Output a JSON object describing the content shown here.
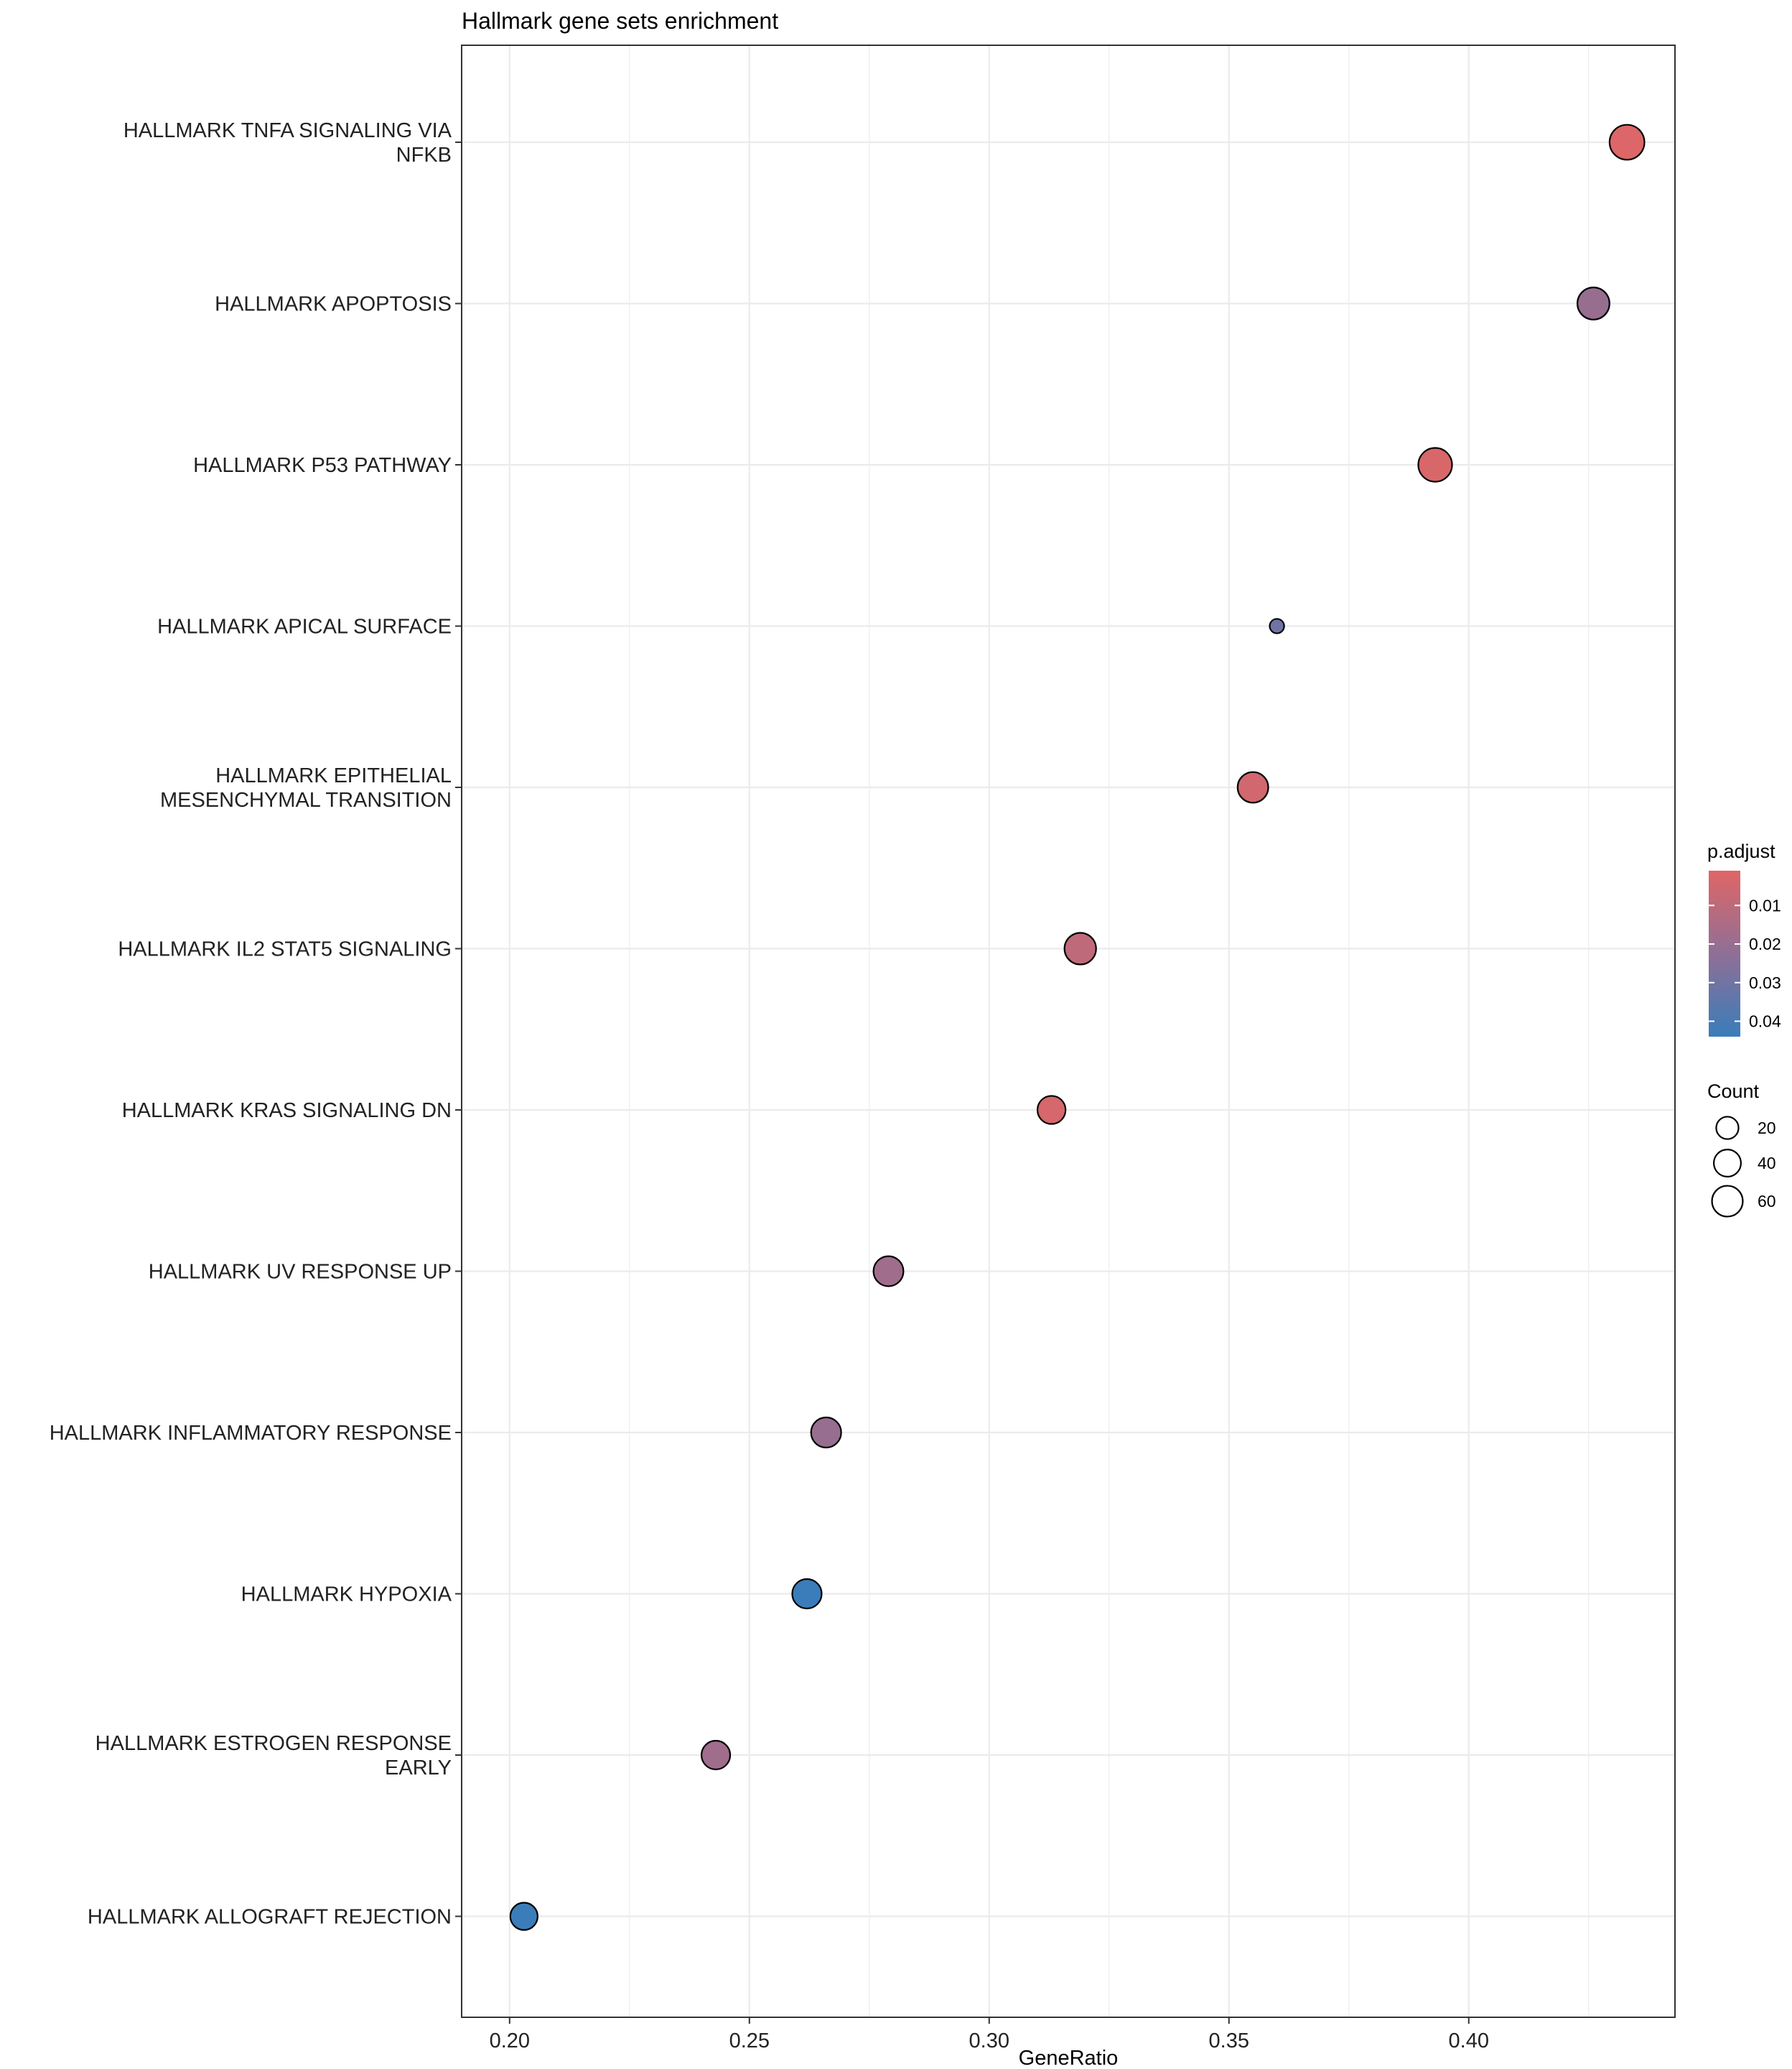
{
  "chart_data": {
    "type": "scatter",
    "title": "Hallmark gene sets enrichment",
    "xlabel": "GeneRatio",
    "ylabel": "",
    "xlim": [
      0.19,
      0.443
    ],
    "xticks": [
      "0.20",
      "0.25",
      "0.30",
      "0.35",
      "0.40"
    ],
    "xtick_values": [
      0.2,
      0.25,
      0.3,
      0.35,
      0.4
    ],
    "grid": true,
    "categories": [
      "HALLMARK TNFA SIGNALING VIA NFKB",
      "HALLMARK APOPTOSIS",
      "HALLMARK P53 PATHWAY",
      "HALLMARK APICAL SURFACE",
      "HALLMARK EPITHELIAL MESENCHYMAL TRANSITION",
      "HALLMARK IL2 STAT5 SIGNALING",
      "HALLMARK KRAS SIGNALING DN",
      "HALLMARK UV RESPONSE UP",
      "HALLMARK INFLAMMATORY RESPONSE",
      "HALLMARK HYPOXIA",
      "HALLMARK ESTROGEN RESPONSE EARLY",
      "HALLMARK ALLOGRAFT REJECTION"
    ],
    "category_lines": [
      [
        "HALLMARK TNFA SIGNALING VIA",
        "NFKB"
      ],
      [
        "HALLMARK APOPTOSIS"
      ],
      [
        "HALLMARK P53 PATHWAY"
      ],
      [
        "HALLMARK APICAL SURFACE"
      ],
      [
        "HALLMARK EPITHELIAL",
        "MESENCHYMAL TRANSITION"
      ],
      [
        "HALLMARK IL2 STAT5 SIGNALING"
      ],
      [
        "HALLMARK KRAS SIGNALING DN"
      ],
      [
        "HALLMARK UV RESPONSE UP"
      ],
      [
        "HALLMARK INFLAMMATORY RESPONSE"
      ],
      [
        "HALLMARK HYPOXIA"
      ],
      [
        "HALLMARK ESTROGEN RESPONSE",
        "EARLY"
      ],
      [
        "HALLMARK ALLOGRAFT REJECTION"
      ]
    ],
    "points": [
      {
        "term": "HALLMARK TNFA SIGNALING VIA NFKB",
        "gene_ratio": 0.433,
        "p_adjust": 0.002,
        "count": 87
      },
      {
        "term": "HALLMARK APOPTOSIS",
        "gene_ratio": 0.426,
        "p_adjust": 0.02,
        "count": 68
      },
      {
        "term": "HALLMARK P53 PATHWAY",
        "gene_ratio": 0.393,
        "p_adjust": 0.003,
        "count": 79
      },
      {
        "term": "HALLMARK APICAL SURFACE",
        "gene_ratio": 0.36,
        "p_adjust": 0.03,
        "count": 2
      },
      {
        "term": "HALLMARK EPITHELIAL MESENCHYMAL TRANSITION",
        "gene_ratio": 0.355,
        "p_adjust": 0.005,
        "count": 59
      },
      {
        "term": "HALLMARK IL2 STAT5 SIGNALING",
        "gene_ratio": 0.319,
        "p_adjust": 0.01,
        "count": 65
      },
      {
        "term": "HALLMARK KRAS SIGNALING DN",
        "gene_ratio": 0.313,
        "p_adjust": 0.004,
        "count": 45
      },
      {
        "term": "HALLMARK UV RESPONSE UP",
        "gene_ratio": 0.279,
        "p_adjust": 0.018,
        "count": 55
      },
      {
        "term": "HALLMARK INFLAMMATORY RESPONSE",
        "gene_ratio": 0.266,
        "p_adjust": 0.02,
        "count": 56
      },
      {
        "term": "HALLMARK HYPOXIA",
        "gene_ratio": 0.262,
        "p_adjust": 0.044,
        "count": 52
      },
      {
        "term": "HALLMARK ESTROGEN RESPONSE EARLY",
        "gene_ratio": 0.243,
        "p_adjust": 0.018,
        "count": 48
      },
      {
        "term": "HALLMARK ALLOGRAFT REJECTION",
        "gene_ratio": 0.203,
        "p_adjust": 0.044,
        "count": 41
      }
    ],
    "color_legend": {
      "title": "p.adjust",
      "domain": [
        0.001,
        0.044
      ],
      "ticks": [
        0.01,
        0.02,
        0.03,
        0.04
      ],
      "tick_labels": [
        "0.01",
        "0.02",
        "0.03",
        "0.04"
      ],
      "low_color": "#e06666",
      "mid_color": "#8f6f96",
      "high_color": "#3a7dba"
    },
    "size_legend": {
      "title": "Count",
      "values": [
        20,
        40,
        60
      ],
      "labels": [
        "20",
        "40",
        "60"
      ]
    }
  }
}
